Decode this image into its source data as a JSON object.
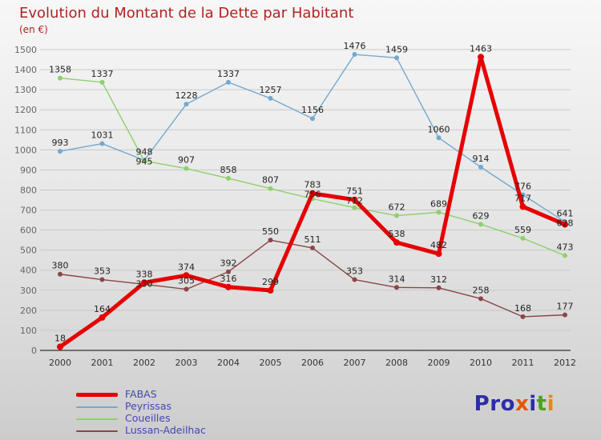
{
  "header": {
    "title": "Evolution du Montant de la Dette par Habitant",
    "subtitle": "(en €)"
  },
  "chart_data": {
    "type": "line",
    "title": "Evolution du Montant de la Dette par Habitant",
    "unit": "€",
    "x": [
      2000,
      2001,
      2002,
      2003,
      2004,
      2005,
      2006,
      2007,
      2008,
      2009,
      2010,
      2011,
      2012
    ],
    "ylim": [
      0,
      1500
    ],
    "ytick_step": 100,
    "grid": true,
    "legend_position": "bottom-left",
    "series": [
      {
        "name": "FABAS",
        "color": "#e60000",
        "width": 5,
        "marker": 4,
        "values": [
          18,
          164,
          338,
          374,
          316,
          299,
          783,
          751,
          538,
          482,
          1463,
          717,
          628
        ]
      },
      {
        "name": "Peyrissas",
        "color": "#74a9cf",
        "width": 1.4,
        "marker": 3,
        "values": [
          993,
          1031,
          948,
          1228,
          1337,
          1257,
          1156,
          1476,
          1459,
          1060,
          914,
          776,
          641
        ]
      },
      {
        "name": "Coueilles",
        "color": "#8ed06c",
        "width": 1.4,
        "marker": 3,
        "values": [
          1358,
          1337,
          945,
          907,
          858,
          807,
          756,
          712,
          672,
          689,
          629,
          559,
          473
        ]
      },
      {
        "name": "Lussan-Adeilhac",
        "color": "#8b4646",
        "width": 1.4,
        "marker": 3,
        "values": [
          380,
          353,
          330,
          305,
          392,
          550,
          511,
          353,
          314,
          312,
          258,
          168,
          177
        ]
      }
    ]
  },
  "colors": {
    "title": "#b22222",
    "grid": "#c9c9c9",
    "axis": "#333333",
    "ytick": "#666666",
    "xtick": "#333333",
    "datalabel": "#222222",
    "legend_text": "#4545b5"
  },
  "logo": {
    "letters": [
      {
        "ch": "P",
        "color": "#2d2da8"
      },
      {
        "ch": "r",
        "color": "#2d2da8"
      },
      {
        "ch": "o",
        "color": "#2d2da8"
      },
      {
        "ch": "x",
        "color": "#e85500"
      },
      {
        "ch": "i",
        "color": "#2d2da8"
      },
      {
        "ch": "t",
        "color": "#4aa41d"
      },
      {
        "ch": "i",
        "color": "#e88a00"
      }
    ]
  }
}
